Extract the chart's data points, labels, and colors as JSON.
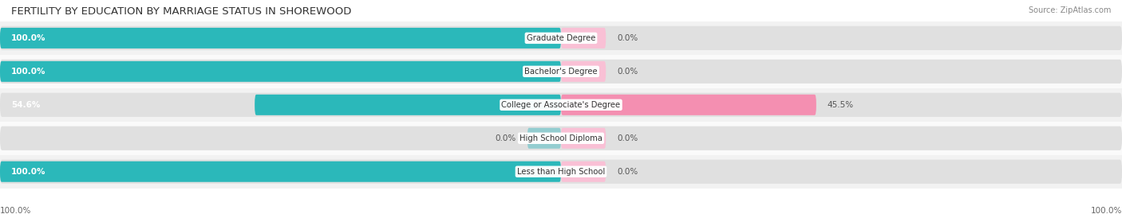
{
  "title": "FERTILITY BY EDUCATION BY MARRIAGE STATUS IN SHOREWOOD",
  "source": "Source: ZipAtlas.com",
  "categories": [
    "Less than High School",
    "High School Diploma",
    "College or Associate's Degree",
    "Bachelor's Degree",
    "Graduate Degree"
  ],
  "married": [
    100.0,
    0.0,
    54.6,
    100.0,
    100.0
  ],
  "unmarried": [
    0.0,
    0.0,
    45.5,
    0.0,
    0.0
  ],
  "color_married": "#2BB8BA",
  "color_married_light": "#93CDD0",
  "color_unmarried": "#F48FB1",
  "color_unmarried_light": "#F9C0D5",
  "bar_track_color": "#E0E0E0",
  "row_bg_even": "#F2F2F2",
  "row_bg_odd": "#FAFAFA",
  "axis_label_left": "100.0%",
  "axis_label_right": "100.0%",
  "title_fontsize": 9.5,
  "label_fontsize": 7.5,
  "tick_fontsize": 7.5
}
